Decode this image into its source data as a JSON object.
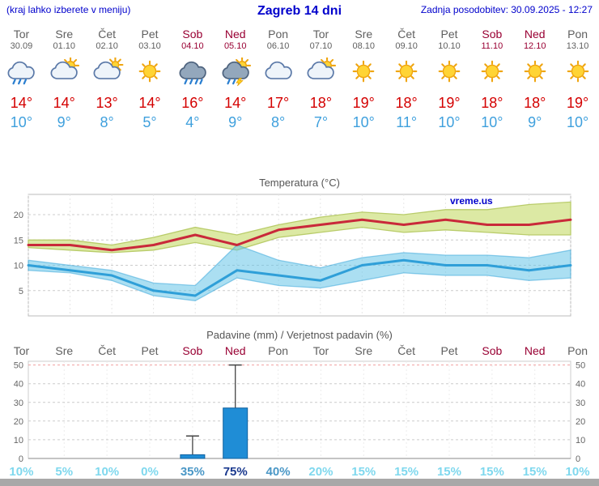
{
  "header": {
    "hint": "(kraj lahko izberete v meniju)",
    "title": "Zagreb 14 dni",
    "updated": "Zadnja posodobitev: 30.09.2025 - 12:27"
  },
  "colors": {
    "link_blue": "#0000cc",
    "weekday_gray": "#5f5f5f",
    "weekend_red": "#990033",
    "high_red": "#d40000",
    "low_blue": "#3fa0dd",
    "prob_low": "#7fd8ee",
    "prob_med": "#4a97c6",
    "prob_high": "#1b3a8f",
    "footer_gray": "#a8a8a8"
  },
  "days": [
    {
      "name": "Tor",
      "date": "30.09",
      "weekend": false,
      "icon": "showers",
      "high": "14°",
      "low": "10°",
      "prob": "10%",
      "prob_level": "low"
    },
    {
      "name": "Sre",
      "date": "01.10",
      "weekend": false,
      "icon": "partly-cloudy",
      "high": "14°",
      "low": "9°",
      "prob": "5%",
      "prob_level": "low"
    },
    {
      "name": "Čet",
      "date": "02.10",
      "weekend": false,
      "icon": "mostly-cloudy",
      "high": "13°",
      "low": "8°",
      "prob": "10%",
      "prob_level": "low"
    },
    {
      "name": "Pet",
      "date": "03.10",
      "weekend": false,
      "icon": "sunny",
      "high": "14°",
      "low": "5°",
      "prob": "0%",
      "prob_level": "low"
    },
    {
      "name": "Sob",
      "date": "04.10",
      "weekend": true,
      "icon": "rain",
      "high": "16°",
      "low": "4°",
      "prob": "35%",
      "prob_level": "med"
    },
    {
      "name": "Ned",
      "date": "05.10",
      "weekend": true,
      "icon": "storm",
      "high": "14°",
      "low": "9°",
      "prob": "75%",
      "prob_level": "high"
    },
    {
      "name": "Pon",
      "date": "06.10",
      "weekend": false,
      "icon": "cloudy",
      "high": "17°",
      "low": "8°",
      "prob": "40%",
      "prob_level": "med"
    },
    {
      "name": "Tor",
      "date": "07.10",
      "weekend": false,
      "icon": "partly-cloudy",
      "high": "18°",
      "low": "7°",
      "prob": "20%",
      "prob_level": "low"
    },
    {
      "name": "Sre",
      "date": "08.10",
      "weekend": false,
      "icon": "sunny",
      "high": "19°",
      "low": "10°",
      "prob": "15%",
      "prob_level": "low"
    },
    {
      "name": "Čet",
      "date": "09.10",
      "weekend": false,
      "icon": "sunny",
      "high": "18°",
      "low": "11°",
      "prob": "15%",
      "prob_level": "low"
    },
    {
      "name": "Pet",
      "date": "10.10",
      "weekend": false,
      "icon": "sunny",
      "high": "19°",
      "low": "10°",
      "prob": "15%",
      "prob_level": "low"
    },
    {
      "name": "Sob",
      "date": "11.10",
      "weekend": true,
      "icon": "sunny",
      "high": "18°",
      "low": "10°",
      "prob": "15%",
      "prob_level": "low"
    },
    {
      "name": "Ned",
      "date": "12.10",
      "weekend": true,
      "icon": "sunny",
      "high": "18°",
      "low": "9°",
      "prob": "15%",
      "prob_level": "low"
    },
    {
      "name": "Pon",
      "date": "13.10",
      "weekend": false,
      "icon": "sunny",
      "high": "19°",
      "low": "10°",
      "prob": "10%",
      "prob_level": "low"
    }
  ],
  "chart_data": [
    {
      "type": "line",
      "title": "Temperatura (°C)",
      "watermark": "vreme.us",
      "x": [
        "Tor 30.09",
        "Sre 01.10",
        "Čet 02.10",
        "Pet 03.10",
        "Sob 04.10",
        "Ned 05.10",
        "Pon 06.10",
        "Tor 07.10",
        "Sre 08.10",
        "Čet 09.10",
        "Pet 10.10",
        "Sob 11.10",
        "Ned 12.10",
        "Pon 13.10"
      ],
      "ylim": [
        0,
        24
      ],
      "yticks": [
        5,
        10,
        15,
        20
      ],
      "series": [
        {
          "id": "max-temp-range-band",
          "name": "Razpon najvišje temperature",
          "kind": "band",
          "color": "#dce9a4",
          "edge": "#b9cc6a",
          "upper": [
            15,
            15,
            14,
            15.5,
            17.5,
            16,
            18,
            19.5,
            20.5,
            20,
            21,
            21,
            22,
            22.5
          ],
          "lower": [
            13.5,
            13,
            12.5,
            13,
            14.5,
            13,
            15.5,
            16.5,
            17.5,
            16.5,
            17,
            16.5,
            16,
            16
          ]
        },
        {
          "id": "min-temp-range-band",
          "name": "Razpon najnižje temperature",
          "kind": "band",
          "color": "#66c4e8",
          "edge": "#3da8da",
          "opacity": 0.55,
          "upper": [
            11,
            10,
            9,
            6.5,
            6,
            14,
            11,
            9.5,
            11.5,
            12.5,
            12,
            12,
            11.5,
            13
          ],
          "lower": [
            9,
            8.5,
            7,
            4,
            3,
            7.5,
            6,
            5.5,
            7,
            8.5,
            8,
            8,
            7,
            7.5
          ]
        },
        {
          "id": "max-temp-line",
          "name": "Najvišja temperatura",
          "kind": "line",
          "color": "#c9293a",
          "values": [
            14,
            14,
            13,
            14,
            16,
            14,
            17,
            18,
            19,
            18,
            19,
            18,
            18,
            19
          ]
        },
        {
          "id": "min-temp-line",
          "name": "Najnižja temperatura",
          "kind": "line",
          "color": "#2f9fd8",
          "values": [
            10,
            9,
            8,
            5,
            4,
            9,
            8,
            7,
            10,
            11,
            10,
            10,
            9,
            10
          ]
        }
      ]
    },
    {
      "type": "bar",
      "title": "Padavine (mm) / Verjetnost padavin (%)",
      "categories": [
        "Tor",
        "Sre",
        "Čet",
        "Pet",
        "Sob",
        "Ned",
        "Pon",
        "Tor",
        "Sre",
        "Čet",
        "Pet",
        "Sob",
        "Ned",
        "Pon"
      ],
      "values_mm": [
        0,
        0,
        0,
        0,
        2,
        27,
        0,
        0,
        0,
        0,
        0,
        0,
        0,
        0
      ],
      "range_max_mm": [
        0,
        0,
        0,
        0,
        12,
        50,
        0,
        0,
        0,
        0,
        0,
        0,
        0,
        0
      ],
      "probabilities_pct": [
        10,
        5,
        10,
        0,
        35,
        75,
        40,
        20,
        15,
        15,
        15,
        15,
        15,
        10
      ],
      "ylim": [
        0,
        52
      ],
      "yticks": [
        0,
        10,
        20,
        30,
        40,
        50
      ],
      "bar_color": "#1f8dd6"
    }
  ]
}
